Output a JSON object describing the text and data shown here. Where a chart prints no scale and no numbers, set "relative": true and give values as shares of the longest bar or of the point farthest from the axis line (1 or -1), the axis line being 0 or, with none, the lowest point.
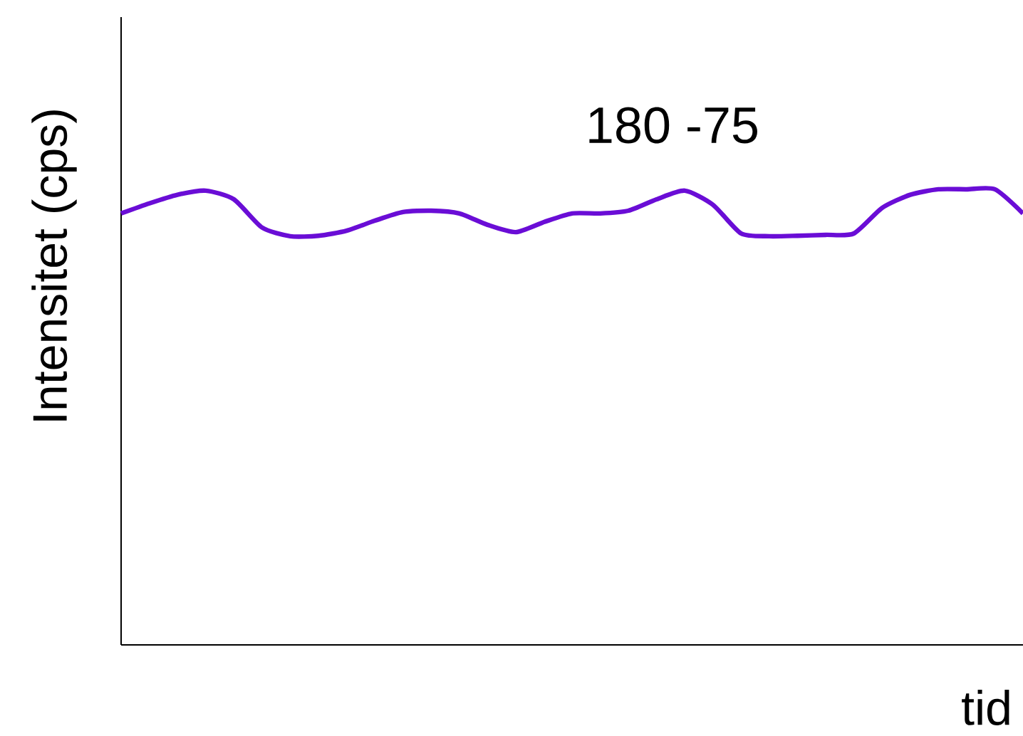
{
  "chart_data": {
    "type": "line",
    "relative": true,
    "xlabel": "tid",
    "ylabel": "Intensitet (cps)",
    "annotations": [
      "180 -75"
    ],
    "categories": [
      null,
      null,
      null,
      null,
      null,
      null,
      null,
      null,
      null,
      null,
      null,
      null,
      null,
      null,
      null,
      null,
      null,
      null,
      null,
      null,
      null,
      null,
      null,
      null,
      null,
      null,
      null,
      null,
      null,
      null,
      null,
      null,
      null
    ],
    "color": "#6a0dd6",
    "values": [
      0.947,
      0.969,
      0.988,
      0.997,
      0.978,
      0.916,
      0.897,
      0.898,
      0.909,
      0.931,
      0.95,
      0.953,
      0.947,
      0.922,
      0.906,
      0.928,
      0.947,
      0.947,
      0.953,
      0.978,
      0.997,
      0.966,
      0.903,
      0.897,
      0.898,
      0.9,
      0.903,
      0.959,
      0.988,
      1,
      1,
      1,
      0.947
    ]
  }
}
